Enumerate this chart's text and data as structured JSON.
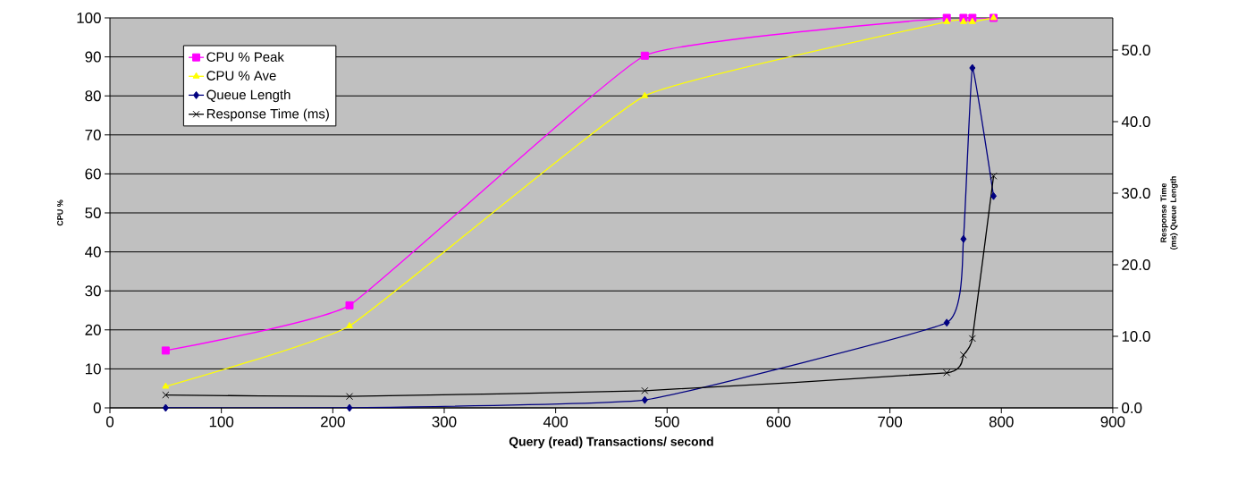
{
  "chart_data": {
    "type": "line",
    "xlabel": "Query (read) Transactions/ second",
    "ylabel": "CPU %",
    "y2label": "Response Time (ms) Queue Length",
    "x": [
      50,
      215,
      480,
      751,
      766,
      774,
      793
    ],
    "series": [
      {
        "name": "CPU % Peak",
        "color": "#ff00ff",
        "marker": "square",
        "values": [
          14.7,
          26.3,
          90.3,
          100,
          100,
          100,
          100
        ]
      },
      {
        "name": "CPU % Ave",
        "color": "#ffff00",
        "marker": "triangle",
        "values": [
          5.5,
          21,
          80,
          99,
          99,
          99,
          100
        ]
      },
      {
        "name": "Queue Length",
        "color": "#000080",
        "marker": "diamond",
        "axis": "y2",
        "values": [
          0,
          0,
          1.1,
          11.9,
          23.6,
          47.5,
          29.6
        ]
      },
      {
        "name": "Response Time (ms)",
        "color": "#000000",
        "marker": "cross",
        "axis": "y2",
        "values": [
          1.8,
          1.6,
          2.4,
          4.9,
          7.4,
          9.7,
          32.4
        ]
      }
    ],
    "xlim": [
      0,
      900
    ],
    "xticks": [
      0,
      100,
      200,
      300,
      400,
      500,
      600,
      700,
      800,
      900
    ],
    "ylim": [
      0,
      100
    ],
    "yticks": [
      0,
      10,
      20,
      30,
      40,
      50,
      60,
      70,
      80,
      90,
      100
    ],
    "y2lim": [
      0,
      54.5
    ],
    "y2ticks": [
      {
        "value": 0,
        "label": "0.0"
      },
      {
        "value": 10,
        "label": "10.0"
      },
      {
        "value": 20,
        "label": "20.0"
      },
      {
        "value": 30,
        "label": "30.0"
      },
      {
        "value": 40,
        "label": "40.0"
      },
      {
        "value": 50,
        "label": "50.0"
      }
    ],
    "grid": "y",
    "legend": "top left",
    "line_style": "solid"
  }
}
